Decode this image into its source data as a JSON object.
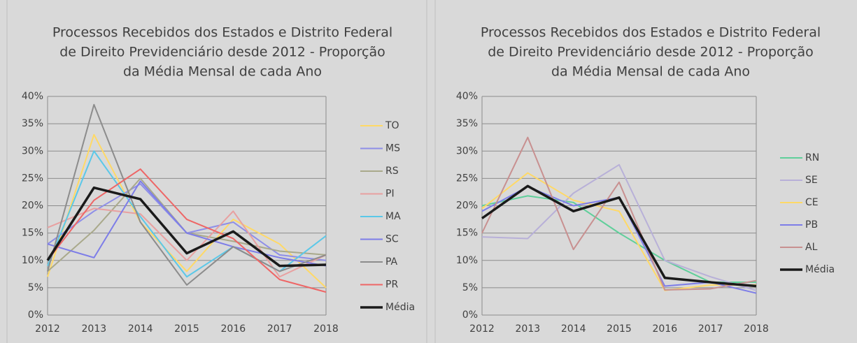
{
  "chart_data": [
    {
      "type": "line",
      "title": [
        "Processos Recebidos dos Estados e Distrito Federal",
        "de Direito Previdenciário desde 2012 - Proporção",
        "da Média Mensal de cada Ano"
      ],
      "categories": [
        "2012",
        "2013",
        "2014",
        "2015",
        "2016",
        "2017",
        "2018"
      ],
      "ylim": [
        0,
        40
      ],
      "yticks": [
        {
          "value": 0,
          "label": "0%"
        },
        {
          "value": 5,
          "label": "5%"
        },
        {
          "value": 10,
          "label": "10%"
        },
        {
          "value": 15,
          "label": "15%"
        },
        {
          "value": 20,
          "label": "20%"
        },
        {
          "value": 25,
          "label": "25%"
        },
        {
          "value": 30,
          "label": "30%"
        },
        {
          "value": 35,
          "label": "35%"
        },
        {
          "value": 40,
          "label": "40%"
        }
      ],
      "grid": true,
      "legend": "right",
      "series": [
        {
          "name": "TO",
          "color": "#ffd966",
          "values": [
            7,
            33,
            17,
            8,
            17.5,
            13,
            5
          ]
        },
        {
          "name": "MS",
          "color": "#8e8ee8",
          "values": [
            13,
            19,
            24,
            15,
            17,
            11,
            10
          ]
        },
        {
          "name": "RS",
          "color": "#a9a98b",
          "values": [
            8,
            15.5,
            25,
            15,
            13.5,
            11.7,
            11
          ]
        },
        {
          "name": "PI",
          "color": "#e8a0a0",
          "values": [
            16,
            19.5,
            18.5,
            10,
            19,
            7,
            11
          ]
        },
        {
          "name": "MA",
          "color": "#5bc8e8",
          "values": [
            9,
            30,
            18,
            7,
            12.5,
            8,
            14.5
          ]
        },
        {
          "name": "SC",
          "color": "#7d7de8",
          "values": [
            13,
            10.5,
            24.5,
            15,
            12.5,
            10.5,
            9
          ]
        },
        {
          "name": "PA",
          "color": "#8c8c8c",
          "values": [
            8,
            38.5,
            17,
            5.5,
            12.5,
            8,
            11
          ]
        },
        {
          "name": "PR",
          "color": "#ee6666",
          "values": [
            10,
            21,
            26.7,
            17.5,
            14,
            6.5,
            4.2
          ]
        },
        {
          "name": "Média",
          "color": "#1a1a1a",
          "values": [
            10,
            23.3,
            21.2,
            11.3,
            15.3,
            9,
            9.2
          ]
        }
      ]
    },
    {
      "type": "line",
      "title": [
        "Processos Recebidos dos Estados e Distrito Federal",
        "de Direito Previdenciário desde 2012 - Proporção",
        "da Média Mensal de cada Ano"
      ],
      "categories": [
        "2012",
        "2013",
        "2014",
        "2015",
        "2016",
        "2017",
        "2018"
      ],
      "ylim": [
        0,
        40
      ],
      "yticks": [
        {
          "value": 0,
          "label": "0%"
        },
        {
          "value": 5,
          "label": "5%"
        },
        {
          "value": 10,
          "label": "10%"
        },
        {
          "value": 15,
          "label": "15%"
        },
        {
          "value": 20,
          "label": "20%"
        },
        {
          "value": 25,
          "label": "25%"
        },
        {
          "value": 30,
          "label": "30%"
        },
        {
          "value": 35,
          "label": "35%"
        },
        {
          "value": 40,
          "label": "40%"
        }
      ],
      "grid": true,
      "legend": "right",
      "series": [
        {
          "name": "RN",
          "color": "#5fcf9a",
          "values": [
            20,
            21.8,
            20.6,
            15,
            10,
            6,
            6
          ]
        },
        {
          "name": "SE",
          "color": "#b8b0d8",
          "values": [
            14.3,
            14,
            22.3,
            27.5,
            10,
            7,
            4.5
          ]
        },
        {
          "name": "CE",
          "color": "#ffd966",
          "values": [
            19.5,
            26,
            21,
            19,
            4.5,
            5.5,
            5.5
          ]
        },
        {
          "name": "PB",
          "color": "#7d7de8",
          "values": [
            19,
            23.5,
            20,
            21.5,
            5.3,
            6,
            4
          ]
        },
        {
          "name": "AL",
          "color": "#c89090",
          "values": [
            15,
            32.5,
            12,
            24.3,
            4.6,
            4.8,
            6.3
          ]
        },
        {
          "name": "Média",
          "color": "#1a1a1a",
          "values": [
            17.7,
            23.6,
            19,
            21.5,
            6.8,
            6,
            5.3
          ]
        }
      ]
    }
  ]
}
